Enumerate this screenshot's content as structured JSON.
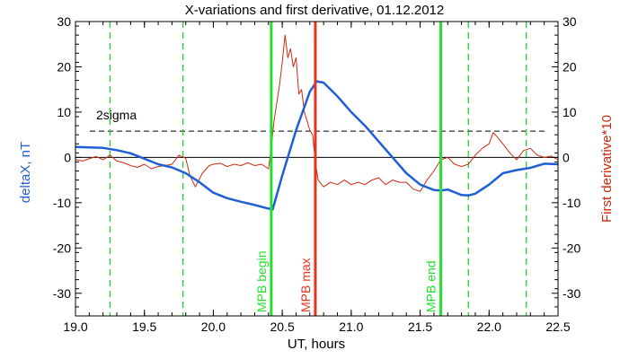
{
  "chart_data": {
    "type": "line",
    "title": "X-variations and first derivative, 01.12.2012",
    "xlabel": "UT, hours",
    "ylabel_left": "deltaX, nT",
    "ylabel_right": "First derivative*10",
    "xlim": [
      19.0,
      22.5
    ],
    "ylim": [
      -35,
      30
    ],
    "x_ticks": [
      19.0,
      19.5,
      20.0,
      20.5,
      21.0,
      21.5,
      22.0,
      22.5
    ],
    "y_ticks": [
      -30,
      -20,
      -10,
      0,
      10,
      20,
      30
    ],
    "x_tick_labels": [
      "19.0",
      "19.5",
      "20.0",
      "20.5",
      "21.0",
      "21.5",
      "22.0",
      "22.5"
    ],
    "y_tick_labels": [
      "-30",
      "-20",
      "-10",
      "0",
      "10",
      "20",
      "30"
    ],
    "sigma_level": 5.8,
    "sigma_label": "2sigma",
    "zero_line": 0,
    "colors": {
      "deltaX": "#1f5fd6",
      "derivative": "#cc2a12",
      "mpb": "#22e02a",
      "max": "#e8321c",
      "dashed_green": "#22d42a",
      "axes": "#000000"
    },
    "vertical_markers": [
      {
        "x": 20.42,
        "label": "MPB begin",
        "color": "#22e02a",
        "style": "solid"
      },
      {
        "x": 20.74,
        "label": "MPB max",
        "color": "#e8321c",
        "style": "solid"
      },
      {
        "x": 21.65,
        "label": "MPB end",
        "color": "#22e02a",
        "style": "solid"
      }
    ],
    "dashed_markers": [
      19.25,
      19.78,
      21.85,
      22.27
    ],
    "series": [
      {
        "key": "deltaX",
        "x": [
          19.0,
          19.1,
          19.2,
          19.3,
          19.4,
          19.5,
          19.6,
          19.7,
          19.8,
          19.9,
          20.0,
          20.1,
          20.2,
          20.3,
          20.4,
          20.43,
          20.5,
          20.6,
          20.7,
          20.75,
          20.8,
          20.9,
          21.0,
          21.1,
          21.2,
          21.3,
          21.4,
          21.5,
          21.6,
          21.65,
          21.7,
          21.8,
          21.85,
          21.9,
          22.0,
          22.1,
          22.2,
          22.3,
          22.4,
          22.5
        ],
        "values": [
          2.3,
          2.2,
          2.1,
          1.6,
          0.9,
          -0.3,
          -1.5,
          -2.2,
          -3.5,
          -5.5,
          -7.8,
          -9.0,
          -9.8,
          -10.5,
          -11.3,
          -11.5,
          -4.0,
          6.0,
          14.5,
          16.8,
          16.5,
          13.5,
          10.0,
          7.0,
          3.5,
          0.0,
          -3.5,
          -6.0,
          -7.2,
          -7.3,
          -7.1,
          -8.3,
          -8.4,
          -8.0,
          -6.0,
          -3.5,
          -2.8,
          -2.3,
          -1.4,
          -1.5
        ]
      },
      {
        "key": "derivative",
        "x": [
          19.0,
          19.05,
          19.1,
          19.15,
          19.2,
          19.25,
          19.3,
          19.35,
          19.4,
          19.45,
          19.5,
          19.55,
          19.6,
          19.65,
          19.7,
          19.75,
          19.8,
          19.83,
          19.87,
          19.92,
          19.97,
          20.0,
          20.05,
          20.1,
          20.15,
          20.2,
          20.25,
          20.3,
          20.35,
          20.4,
          20.42,
          20.44,
          20.46,
          20.48,
          20.5,
          20.52,
          20.54,
          20.56,
          20.58,
          20.6,
          20.62,
          20.64,
          20.66,
          20.68,
          20.7,
          20.72,
          20.74,
          20.76,
          20.8,
          20.85,
          20.9,
          20.95,
          21.0,
          21.05,
          21.1,
          21.15,
          21.2,
          21.25,
          21.3,
          21.35,
          21.4,
          21.45,
          21.5,
          21.55,
          21.6,
          21.65,
          21.7,
          21.75,
          21.8,
          21.85,
          21.9,
          21.95,
          22.0,
          22.03,
          22.06,
          22.1,
          22.15,
          22.2,
          22.25,
          22.3,
          22.35,
          22.4,
          22.45,
          22.5
        ],
        "values": [
          -0.5,
          -0.8,
          -0.3,
          0.2,
          -0.5,
          0.5,
          -0.8,
          -1.2,
          -1.8,
          -2.2,
          -1.5,
          -2.5,
          -2.0,
          -1.8,
          -1.5,
          0.5,
          -0.2,
          -4.0,
          -6.5,
          -3.5,
          -1.8,
          -1.5,
          -1.3,
          -2.0,
          -1.5,
          -1.8,
          -1.2,
          -1.8,
          -1.5,
          -2.5,
          2.0,
          8.0,
          12.0,
          16.0,
          21.0,
          27.0,
          22.0,
          24.0,
          20.0,
          22.0,
          14.0,
          15.0,
          10.0,
          8.0,
          6.0,
          5.0,
          -1.0,
          -5.0,
          -6.5,
          -5.5,
          -6.0,
          -5.0,
          -6.0,
          -5.5,
          -6.0,
          -5.0,
          -4.5,
          -6.0,
          -5.0,
          -5.5,
          -5.5,
          -7.0,
          -7.5,
          -5.0,
          -3.0,
          -0.5,
          0.0,
          -1.5,
          -2.0,
          -1.5,
          0.5,
          2.0,
          3.0,
          5.5,
          4.5,
          3.0,
          1.0,
          -0.5,
          1.5,
          2.0,
          0.5,
          0.0,
          0.3,
          -0.5
        ]
      }
    ]
  }
}
